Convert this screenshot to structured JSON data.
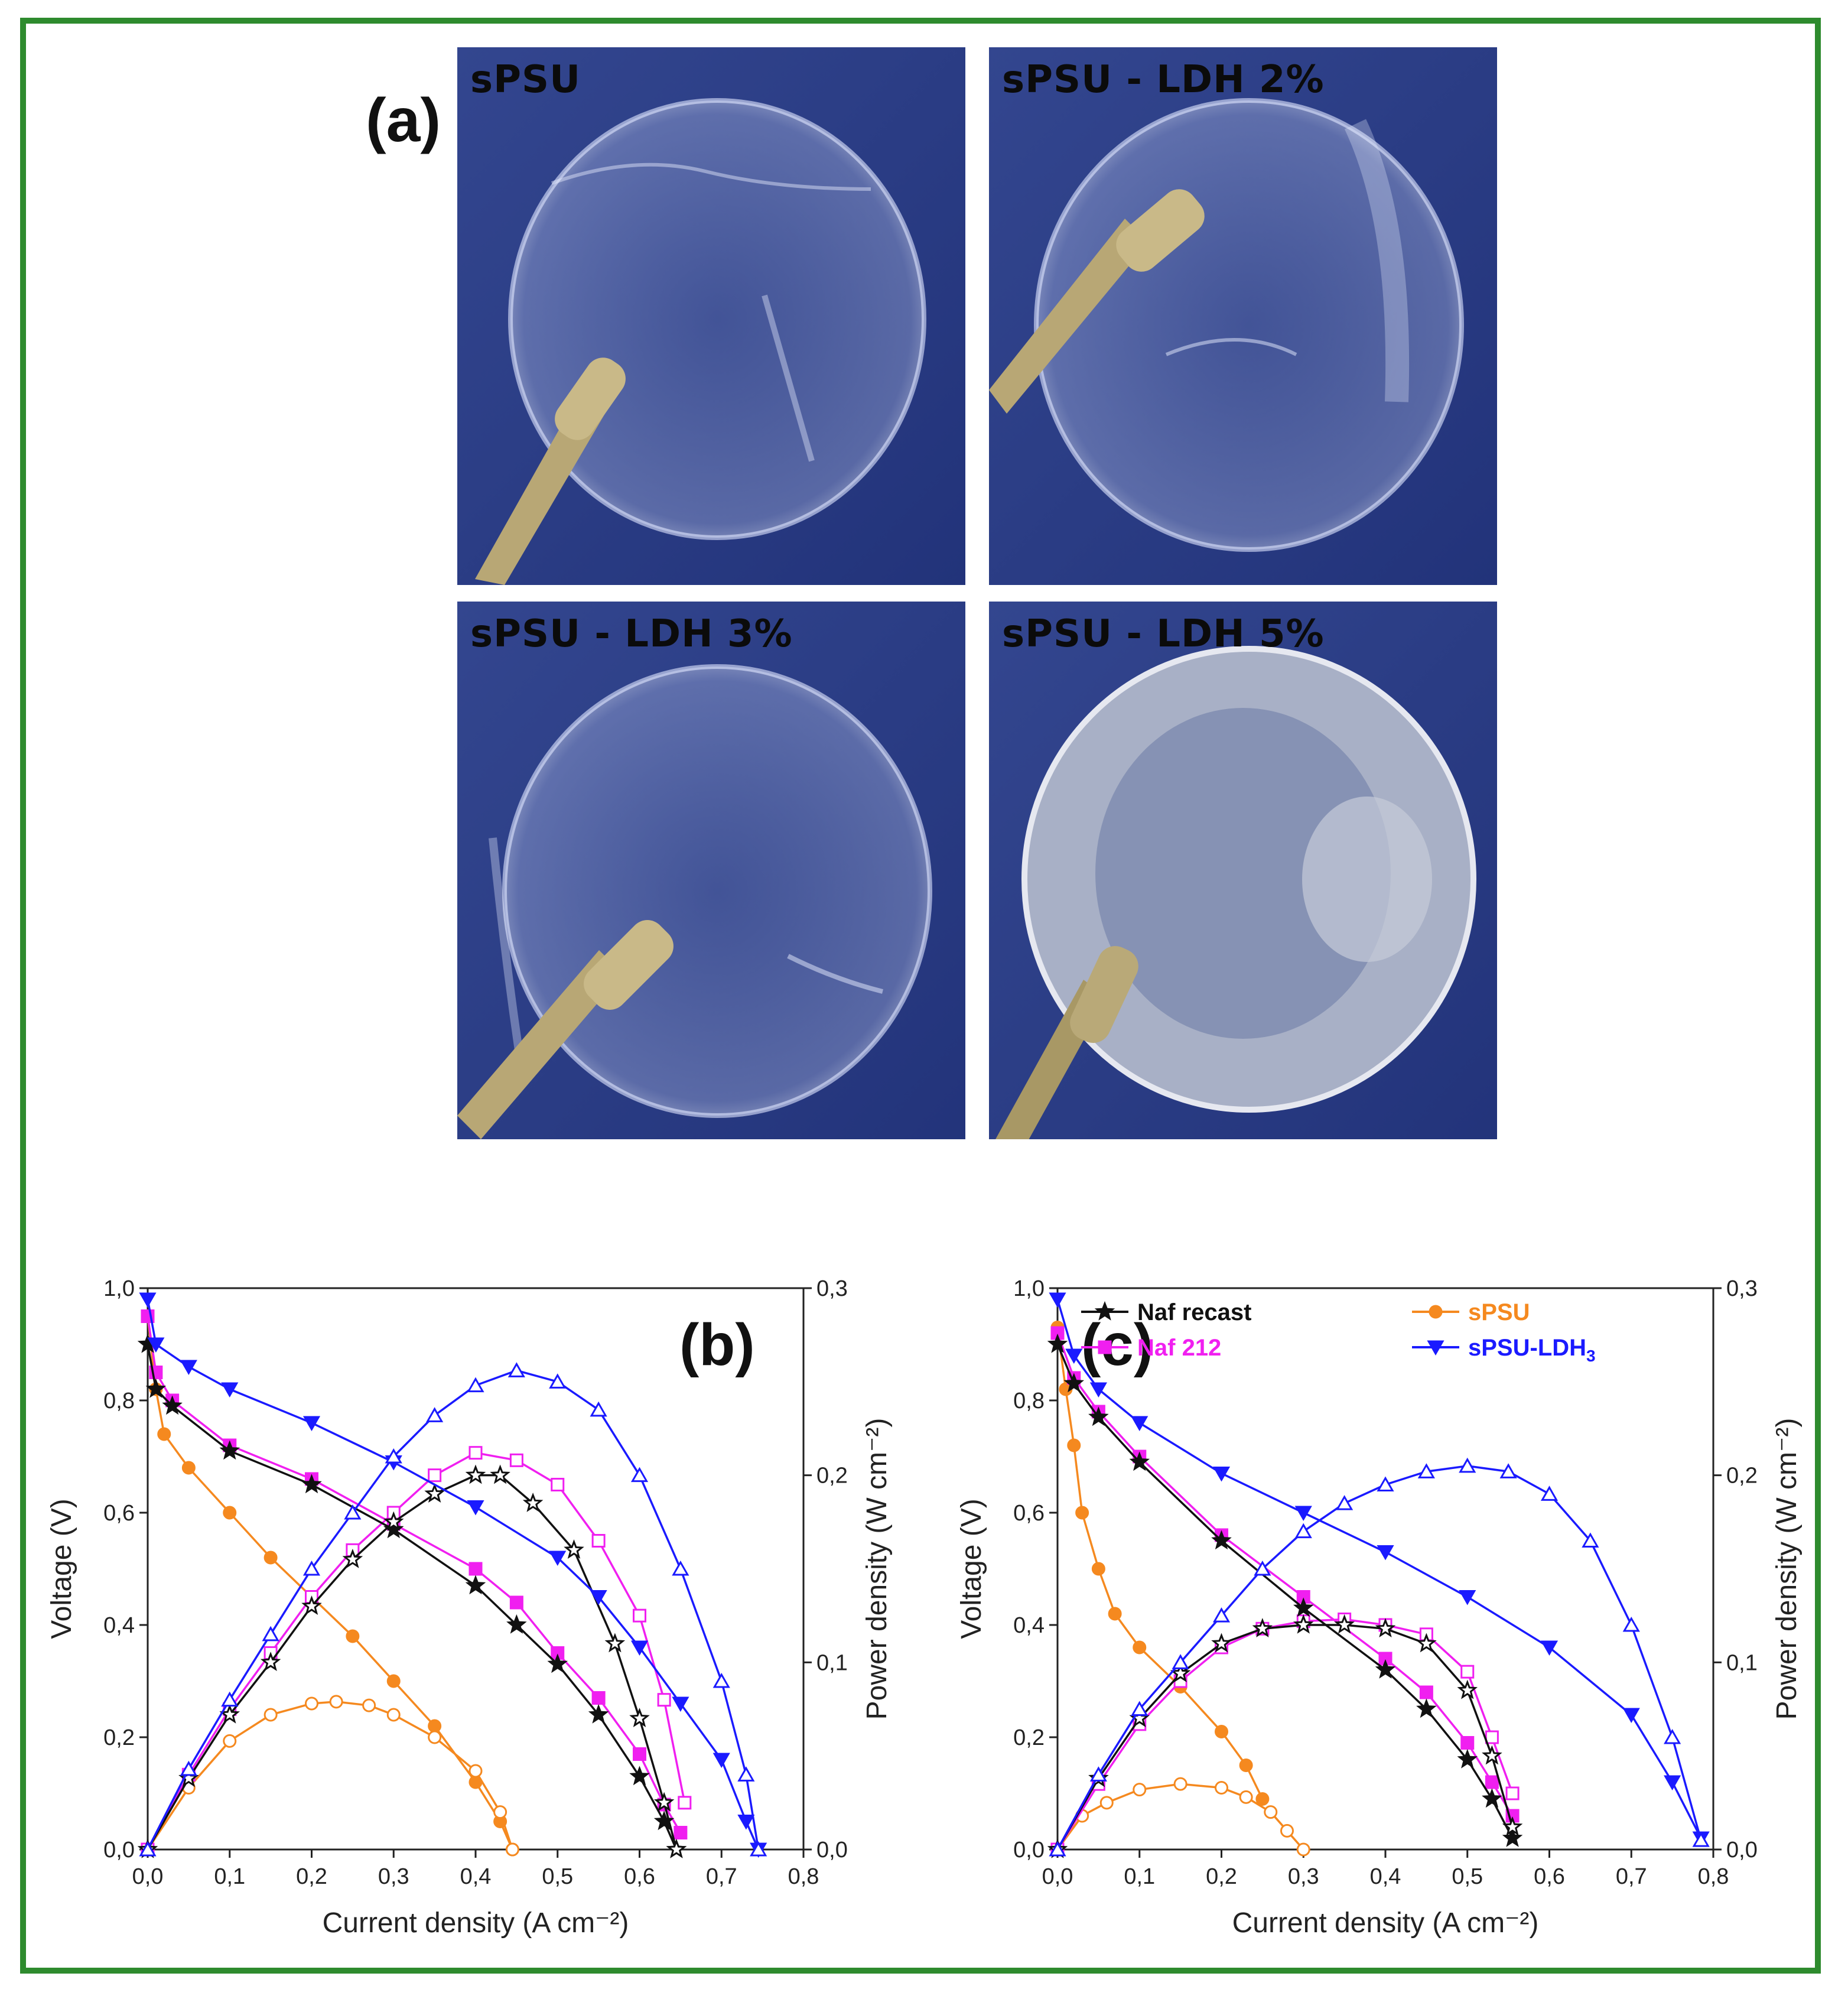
{
  "panel_a": {
    "label": "(a)",
    "photos": [
      {
        "label": "sPSU"
      },
      {
        "label": "sPSU - LDH 2%"
      },
      {
        "label": "sPSU - LDH 3%"
      },
      {
        "label": "sPSU - LDH 5%"
      }
    ]
  },
  "colors": {
    "frame": "#2e8b2e",
    "orange": "#f5891f",
    "magenta": "#f01ff0",
    "black": "#111111",
    "blue": "#1a1aff",
    "photo_bg": "#2c3f86"
  },
  "chart_data": [
    {
      "type": "line",
      "panel_label": "(b)",
      "xlabel": "Current density (A cm⁻²)",
      "ylabel": "Voltage (V)",
      "y2label": "Power density (W cm⁻²)",
      "xlim": [
        0,
        0.8
      ],
      "ylim": [
        0,
        1.0
      ],
      "y2lim": [
        0,
        0.3
      ],
      "xticks": [
        "0,0",
        "0,1",
        "0,2",
        "0,3",
        "0,4",
        "0,5",
        "0,6",
        "0,7",
        "0,8"
      ],
      "yticks": [
        "0,0",
        "0,2",
        "0,4",
        "0,6",
        "0,8",
        "1,0"
      ],
      "y2ticks": [
        "0,0",
        "0,1",
        "0,2",
        "0,3"
      ],
      "series": [
        {
          "name": "sPSU",
          "color": "#f5891f",
          "marker": "circle",
          "voltage": [
            [
              0,
              0.95
            ],
            [
              0.01,
              0.82
            ],
            [
              0.02,
              0.74
            ],
            [
              0.05,
              0.68
            ],
            [
              0.1,
              0.6
            ],
            [
              0.15,
              0.52
            ],
            [
              0.2,
              0.45
            ],
            [
              0.25,
              0.38
            ],
            [
              0.3,
              0.3
            ],
            [
              0.35,
              0.22
            ],
            [
              0.4,
              0.12
            ],
            [
              0.43,
              0.05
            ],
            [
              0.445,
              0
            ]
          ],
          "power": [
            [
              0,
              0
            ],
            [
              0.05,
              0.033
            ],
            [
              0.1,
              0.058
            ],
            [
              0.15,
              0.072
            ],
            [
              0.2,
              0.078
            ],
            [
              0.23,
              0.079
            ],
            [
              0.27,
              0.077
            ],
            [
              0.3,
              0.072
            ],
            [
              0.35,
              0.06
            ],
            [
              0.4,
              0.042
            ],
            [
              0.43,
              0.02
            ],
            [
              0.445,
              0
            ]
          ]
        },
        {
          "name": "Naf 212",
          "color": "#f01ff0",
          "marker": "square",
          "voltage": [
            [
              0,
              0.95
            ],
            [
              0.01,
              0.85
            ],
            [
              0.03,
              0.8
            ],
            [
              0.1,
              0.72
            ],
            [
              0.2,
              0.66
            ],
            [
              0.3,
              0.58
            ],
            [
              0.4,
              0.5
            ],
            [
              0.45,
              0.44
            ],
            [
              0.5,
              0.35
            ],
            [
              0.55,
              0.27
            ],
            [
              0.6,
              0.17
            ],
            [
              0.63,
              0.08
            ],
            [
              0.65,
              0.03
            ]
          ],
          "power": [
            [
              0,
              0
            ],
            [
              0.05,
              0.04
            ],
            [
              0.1,
              0.075
            ],
            [
              0.15,
              0.105
            ],
            [
              0.2,
              0.135
            ],
            [
              0.25,
              0.16
            ],
            [
              0.3,
              0.18
            ],
            [
              0.35,
              0.2
            ],
            [
              0.4,
              0.212
            ],
            [
              0.45,
              0.208
            ],
            [
              0.5,
              0.195
            ],
            [
              0.55,
              0.165
            ],
            [
              0.6,
              0.125
            ],
            [
              0.63,
              0.08
            ],
            [
              0.655,
              0.025
            ]
          ]
        },
        {
          "name": "Naf recast",
          "color": "#111111",
          "marker": "star",
          "voltage": [
            [
              0,
              0.9
            ],
            [
              0.01,
              0.82
            ],
            [
              0.03,
              0.79
            ],
            [
              0.1,
              0.71
            ],
            [
              0.2,
              0.65
            ],
            [
              0.3,
              0.57
            ],
            [
              0.4,
              0.47
            ],
            [
              0.45,
              0.4
            ],
            [
              0.5,
              0.33
            ],
            [
              0.55,
              0.24
            ],
            [
              0.6,
              0.13
            ],
            [
              0.63,
              0.05
            ],
            [
              0.645,
              0
            ]
          ],
          "power": [
            [
              0,
              0
            ],
            [
              0.05,
              0.038
            ],
            [
              0.1,
              0.072
            ],
            [
              0.15,
              0.1
            ],
            [
              0.2,
              0.13
            ],
            [
              0.25,
              0.155
            ],
            [
              0.3,
              0.175
            ],
            [
              0.35,
              0.19
            ],
            [
              0.4,
              0.2
            ],
            [
              0.43,
              0.2
            ],
            [
              0.47,
              0.185
            ],
            [
              0.52,
              0.16
            ],
            [
              0.57,
              0.11
            ],
            [
              0.6,
              0.07
            ],
            [
              0.63,
              0.025
            ],
            [
              0.645,
              0
            ]
          ]
        },
        {
          "name": "sPSU-LDH3",
          "color": "#1a1aff",
          "marker": "triangle",
          "voltage": [
            [
              0,
              0.98
            ],
            [
              0.01,
              0.9
            ],
            [
              0.05,
              0.86
            ],
            [
              0.1,
              0.82
            ],
            [
              0.2,
              0.76
            ],
            [
              0.3,
              0.69
            ],
            [
              0.4,
              0.61
            ],
            [
              0.5,
              0.52
            ],
            [
              0.55,
              0.45
            ],
            [
              0.6,
              0.36
            ],
            [
              0.65,
              0.26
            ],
            [
              0.7,
              0.16
            ],
            [
              0.73,
              0.05
            ],
            [
              0.745,
              0
            ]
          ],
          "power": [
            [
              0,
              0
            ],
            [
              0.05,
              0.043
            ],
            [
              0.1,
              0.08
            ],
            [
              0.15,
              0.115
            ],
            [
              0.2,
              0.15
            ],
            [
              0.25,
              0.18
            ],
            [
              0.3,
              0.21
            ],
            [
              0.35,
              0.232
            ],
            [
              0.4,
              0.248
            ],
            [
              0.45,
              0.256
            ],
            [
              0.5,
              0.25
            ],
            [
              0.55,
              0.235
            ],
            [
              0.6,
              0.2
            ],
            [
              0.65,
              0.15
            ],
            [
              0.7,
              0.09
            ],
            [
              0.73,
              0.04
            ],
            [
              0.745,
              0
            ]
          ]
        }
      ]
    },
    {
      "type": "line",
      "panel_label": "(c)",
      "xlabel": "Current density (A cm⁻²)",
      "ylabel": "Voltage (V)",
      "y2label": "Power density (W cm⁻²)",
      "xlim": [
        0,
        0.8
      ],
      "ylim": [
        0,
        1.0
      ],
      "y2lim": [
        0,
        0.3
      ],
      "xticks": [
        "0,0",
        "0,1",
        "0,2",
        "0,3",
        "0,4",
        "0,5",
        "0,6",
        "0,7",
        "0,8"
      ],
      "yticks": [
        "0,0",
        "0,2",
        "0,4",
        "0,6",
        "0,8",
        "1,0"
      ],
      "y2ticks": [
        "0,0",
        "0,1",
        "0,2",
        "0,3"
      ],
      "legend": [
        {
          "name": "Naf recast",
          "color": "#111111",
          "marker": "star"
        },
        {
          "name": "Naf 212",
          "color": "#f01ff0",
          "marker": "square"
        },
        {
          "name": "sPSU",
          "color": "#f5891f",
          "marker": "circle"
        },
        {
          "name": "sPSU-LDH",
          "sub": "3",
          "color": "#1a1aff",
          "marker": "triangle"
        }
      ],
      "series": [
        {
          "name": "sPSU",
          "color": "#f5891f",
          "marker": "circle",
          "voltage": [
            [
              0,
              0.93
            ],
            [
              0.01,
              0.82
            ],
            [
              0.02,
              0.72
            ],
            [
              0.03,
              0.6
            ],
            [
              0.05,
              0.5
            ],
            [
              0.07,
              0.42
            ],
            [
              0.1,
              0.36
            ],
            [
              0.15,
              0.29
            ],
            [
              0.2,
              0.21
            ],
            [
              0.23,
              0.15
            ],
            [
              0.25,
              0.09
            ]
          ],
          "power": [
            [
              0,
              0
            ],
            [
              0.03,
              0.018
            ],
            [
              0.06,
              0.025
            ],
            [
              0.1,
              0.032
            ],
            [
              0.15,
              0.035
            ],
            [
              0.2,
              0.033
            ],
            [
              0.23,
              0.028
            ],
            [
              0.26,
              0.02
            ],
            [
              0.28,
              0.01
            ],
            [
              0.3,
              0
            ]
          ]
        },
        {
          "name": "Naf 212",
          "color": "#f01ff0",
          "marker": "square",
          "voltage": [
            [
              0,
              0.92
            ],
            [
              0.02,
              0.84
            ],
            [
              0.05,
              0.78
            ],
            [
              0.1,
              0.7
            ],
            [
              0.2,
              0.56
            ],
            [
              0.3,
              0.45
            ],
            [
              0.4,
              0.34
            ],
            [
              0.45,
              0.28
            ],
            [
              0.5,
              0.19
            ],
            [
              0.53,
              0.12
            ],
            [
              0.555,
              0.06
            ]
          ],
          "power": [
            [
              0,
              0
            ],
            [
              0.05,
              0.035
            ],
            [
              0.1,
              0.067
            ],
            [
              0.15,
              0.09
            ],
            [
              0.2,
              0.108
            ],
            [
              0.25,
              0.118
            ],
            [
              0.3,
              0.122
            ],
            [
              0.35,
              0.123
            ],
            [
              0.4,
              0.12
            ],
            [
              0.45,
              0.115
            ],
            [
              0.5,
              0.095
            ],
            [
              0.53,
              0.06
            ],
            [
              0.555,
              0.03
            ]
          ]
        },
        {
          "name": "Naf recast",
          "color": "#111111",
          "marker": "star",
          "voltage": [
            [
              0,
              0.9
            ],
            [
              0.02,
              0.83
            ],
            [
              0.05,
              0.77
            ],
            [
              0.1,
              0.69
            ],
            [
              0.2,
              0.55
            ],
            [
              0.3,
              0.43
            ],
            [
              0.4,
              0.32
            ],
            [
              0.45,
              0.25
            ],
            [
              0.5,
              0.16
            ],
            [
              0.53,
              0.09
            ],
            [
              0.555,
              0.02
            ]
          ],
          "power": [
            [
              0,
              0
            ],
            [
              0.05,
              0.038
            ],
            [
              0.1,
              0.07
            ],
            [
              0.15,
              0.094
            ],
            [
              0.2,
              0.11
            ],
            [
              0.25,
              0.118
            ],
            [
              0.3,
              0.12
            ],
            [
              0.35,
              0.12
            ],
            [
              0.4,
              0.118
            ],
            [
              0.45,
              0.11
            ],
            [
              0.5,
              0.085
            ],
            [
              0.53,
              0.05
            ],
            [
              0.555,
              0.012
            ]
          ]
        },
        {
          "name": "sPSU-LDH3",
          "color": "#1a1aff",
          "marker": "triangle",
          "voltage": [
            [
              0,
              0.98
            ],
            [
              0.02,
              0.88
            ],
            [
              0.05,
              0.82
            ],
            [
              0.1,
              0.76
            ],
            [
              0.2,
              0.67
            ],
            [
              0.3,
              0.6
            ],
            [
              0.4,
              0.53
            ],
            [
              0.5,
              0.45
            ],
            [
              0.6,
              0.36
            ],
            [
              0.7,
              0.24
            ],
            [
              0.75,
              0.12
            ],
            [
              0.785,
              0.02
            ]
          ],
          "power": [
            [
              0,
              0
            ],
            [
              0.05,
              0.04
            ],
            [
              0.1,
              0.075
            ],
            [
              0.15,
              0.1
            ],
            [
              0.2,
              0.125
            ],
            [
              0.25,
              0.15
            ],
            [
              0.3,
              0.17
            ],
            [
              0.35,
              0.185
            ],
            [
              0.4,
              0.195
            ],
            [
              0.45,
              0.202
            ],
            [
              0.5,
              0.205
            ],
            [
              0.55,
              0.202
            ],
            [
              0.6,
              0.19
            ],
            [
              0.65,
              0.165
            ],
            [
              0.7,
              0.12
            ],
            [
              0.75,
              0.06
            ],
            [
              0.785,
              0.005
            ]
          ]
        }
      ]
    }
  ]
}
